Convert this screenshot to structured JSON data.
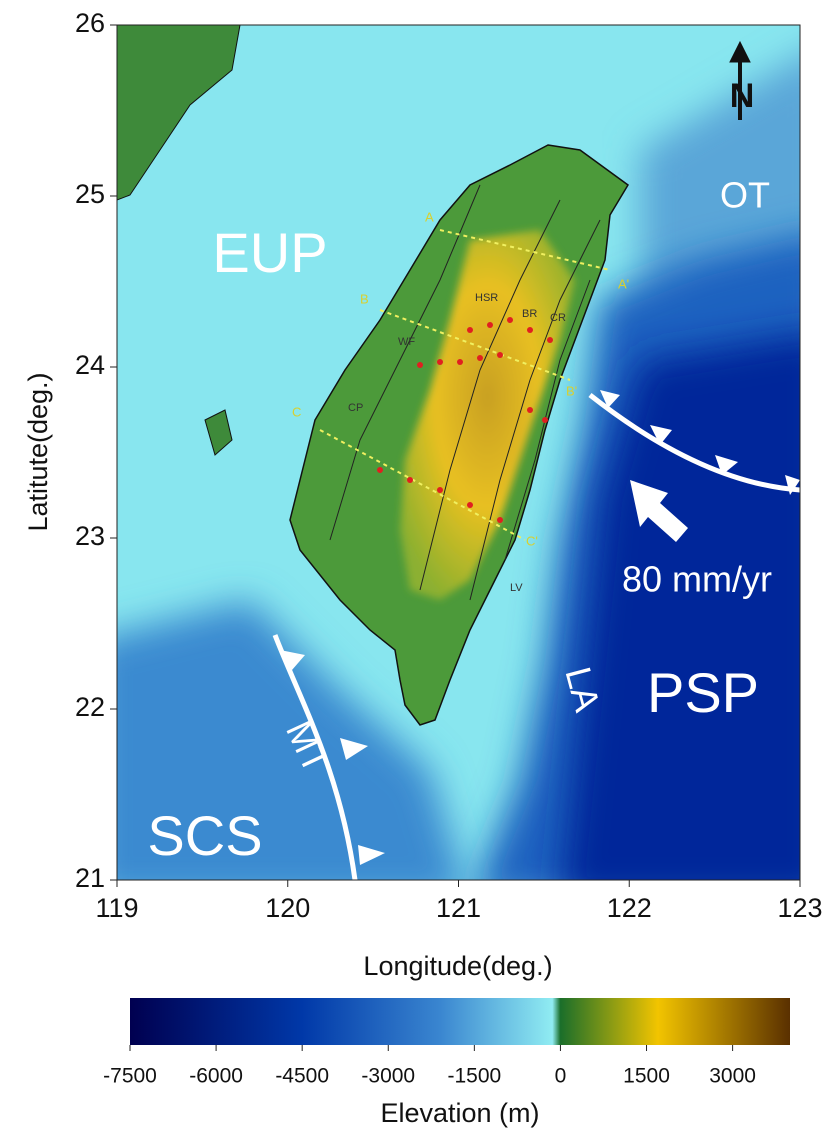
{
  "chart_data": {
    "type": "map",
    "xlabel": "Longitude(deg.)",
    "ylabel": "Latitute(deg.)",
    "xlim": [
      119,
      123
    ],
    "ylim": [
      21,
      26
    ],
    "xticks": [
      119,
      120,
      121,
      122,
      123
    ],
    "yticks": [
      21,
      22,
      23,
      24,
      25,
      26
    ],
    "colorbar": {
      "label": "Elevation (m)",
      "lim": [
        -7500,
        4000
      ],
      "ticks": [
        -7500,
        -6000,
        -4500,
        -3000,
        -1500,
        0,
        1500,
        3000
      ]
    },
    "labels": {
      "north": "N",
      "eup": "EUP",
      "ot": "OT",
      "psp": "PSP",
      "scs": "SCS",
      "mt": "MT",
      "la": "LA",
      "velocity": "80 mm/yr",
      "profiles": [
        "A",
        "A'",
        "B",
        "B'",
        "C",
        "C'"
      ],
      "features": [
        "HSR",
        "BR",
        "CR",
        "WF",
        "CP",
        "LV"
      ]
    }
  }
}
